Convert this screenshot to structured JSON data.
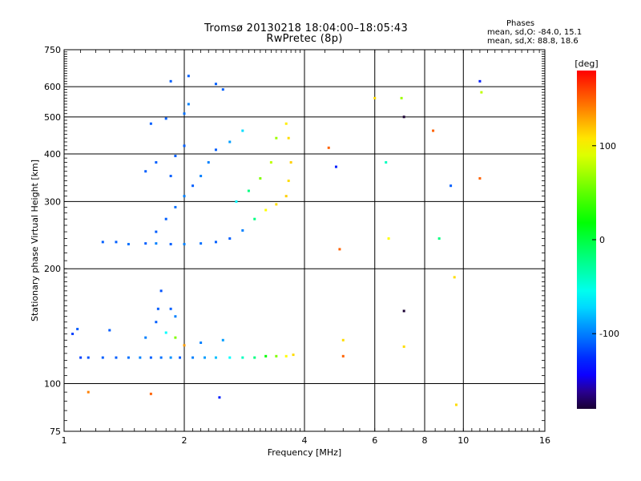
{
  "header": {
    "title": "Tromsø 20130218 18:04:00–18:05:43",
    "subtitle": "RwPretec (8p)",
    "stats_title": "Phases",
    "stats_o": "mean, sd,O: -84.0, 15.1",
    "stats_x": "mean, sd,X:  88.8, 18.6"
  },
  "chart_data": {
    "type": "scatter",
    "title": "Tromsø 20130218 18:04:00–18:05:43",
    "subtitle": "RwPretec (8p)",
    "xlabel": "Frequency [MHz]",
    "ylabel": "Stationary phase Virtual Height [km]",
    "x_scale": "log2",
    "y_scale": "log",
    "xlim": [
      1,
      16
    ],
    "ylim": [
      75,
      750
    ],
    "xticks": [
      1,
      2,
      4,
      6,
      8,
      10,
      16
    ],
    "yticks": [
      75,
      100,
      200,
      300,
      400,
      500,
      600,
      750
    ],
    "grid": true,
    "colorbar": {
      "label": "[deg]",
      "range": [
        -180,
        180
      ],
      "ticks": [
        -100,
        0,
        100
      ]
    },
    "series": [
      {
        "points": [
          [
            1.1,
            117,
            -120
          ],
          [
            1.15,
            117,
            -115
          ],
          [
            1.25,
            117,
            -110
          ],
          [
            1.35,
            117,
            -110
          ],
          [
            1.45,
            117,
            -105
          ],
          [
            1.55,
            117,
            -100
          ],
          [
            1.65,
            117,
            -110
          ],
          [
            1.75,
            117,
            -105
          ],
          [
            1.85,
            117,
            -95
          ],
          [
            1.95,
            117,
            -110
          ],
          [
            2.1,
            117,
            -100
          ],
          [
            2.25,
            117,
            -90
          ],
          [
            2.4,
            117,
            -80
          ],
          [
            2.6,
            117,
            -60
          ],
          [
            2.8,
            117,
            -40
          ],
          [
            3.0,
            117,
            -20
          ],
          [
            3.2,
            118,
            20
          ],
          [
            3.4,
            118,
            60
          ],
          [
            3.6,
            118,
            100
          ],
          [
            3.75,
            119,
            110
          ],
          [
            1.05,
            135,
            -120
          ],
          [
            1.08,
            139,
            -110
          ],
          [
            1.3,
            138,
            -110
          ],
          [
            1.6,
            132,
            -100
          ],
          [
            1.7,
            145,
            -110
          ],
          [
            1.8,
            136,
            -60
          ],
          [
            1.9,
            132,
            60
          ],
          [
            2.0,
            126,
            130
          ],
          [
            2.2,
            128,
            -100
          ],
          [
            2.5,
            130,
            -90
          ],
          [
            1.72,
            157,
            -110
          ],
          [
            1.85,
            157,
            -110
          ],
          [
            1.75,
            175,
            -115
          ],
          [
            1.9,
            150,
            -100
          ],
          [
            1.25,
            235,
            -110
          ],
          [
            1.35,
            235,
            -110
          ],
          [
            1.45,
            232,
            -105
          ],
          [
            1.6,
            233,
            -110
          ],
          [
            1.7,
            233,
            -100
          ],
          [
            1.85,
            232,
            -110
          ],
          [
            2.0,
            232,
            -100
          ],
          [
            2.2,
            233,
            -105
          ],
          [
            2.4,
            235,
            -110
          ],
          [
            2.6,
            240,
            -110
          ],
          [
            2.8,
            252,
            -100
          ],
          [
            3.0,
            270,
            -20
          ],
          [
            3.2,
            285,
            100
          ],
          [
            3.4,
            295,
            110
          ],
          [
            3.6,
            310,
            115
          ],
          [
            3.65,
            340,
            110
          ],
          [
            3.7,
            380,
            115
          ],
          [
            3.65,
            440,
            110
          ],
          [
            3.6,
            480,
            105
          ],
          [
            1.7,
            250,
            -110
          ],
          [
            1.8,
            270,
            -110
          ],
          [
            1.9,
            290,
            -105
          ],
          [
            2.0,
            310,
            -100
          ],
          [
            2.1,
            330,
            -110
          ],
          [
            2.2,
            350,
            -100
          ],
          [
            2.3,
            380,
            -100
          ],
          [
            2.4,
            410,
            -110
          ],
          [
            2.6,
            430,
            -90
          ],
          [
            2.8,
            460,
            -70
          ],
          [
            1.6,
            360,
            -110
          ],
          [
            1.7,
            380,
            -110
          ],
          [
            1.85,
            350,
            -110
          ],
          [
            1.9,
            395,
            -110
          ],
          [
            2.0,
            420,
            -110
          ],
          [
            1.65,
            480,
            -110
          ],
          [
            1.8,
            495,
            -110
          ],
          [
            2.0,
            510,
            -105
          ],
          [
            2.05,
            540,
            -100
          ],
          [
            1.85,
            620,
            -110
          ],
          [
            2.05,
            640,
            -110
          ],
          [
            2.4,
            610,
            -110
          ],
          [
            2.5,
            590,
            -110
          ],
          [
            2.7,
            300,
            -60
          ],
          [
            2.9,
            320,
            -20
          ],
          [
            3.1,
            345,
            60
          ],
          [
            3.3,
            380,
            80
          ],
          [
            3.4,
            440,
            70
          ],
          [
            1.15,
            95,
            140
          ],
          [
            1.65,
            94,
            150
          ],
          [
            2.45,
            92,
            -130
          ],
          [
            4.6,
            415,
            150
          ],
          [
            4.8,
            370,
            -130
          ],
          [
            4.9,
            225,
            150
          ],
          [
            5.0,
            118,
            150
          ],
          [
            5.0,
            130,
            110
          ],
          [
            6.0,
            560,
            110
          ],
          [
            6.4,
            380,
            -40
          ],
          [
            6.5,
            240,
            100
          ],
          [
            7.0,
            560,
            70
          ],
          [
            7.1,
            500,
            -180
          ],
          [
            7.1,
            155,
            -180
          ],
          [
            7.1,
            125,
            110
          ],
          [
            8.4,
            460,
            150
          ],
          [
            8.7,
            240,
            -20
          ],
          [
            9.3,
            330,
            -110
          ],
          [
            9.5,
            190,
            110
          ],
          [
            9.6,
            88,
            110
          ],
          [
            11.0,
            620,
            -130
          ],
          [
            11.1,
            580,
            80
          ],
          [
            11.0,
            345,
            150
          ]
        ]
      }
    ]
  }
}
